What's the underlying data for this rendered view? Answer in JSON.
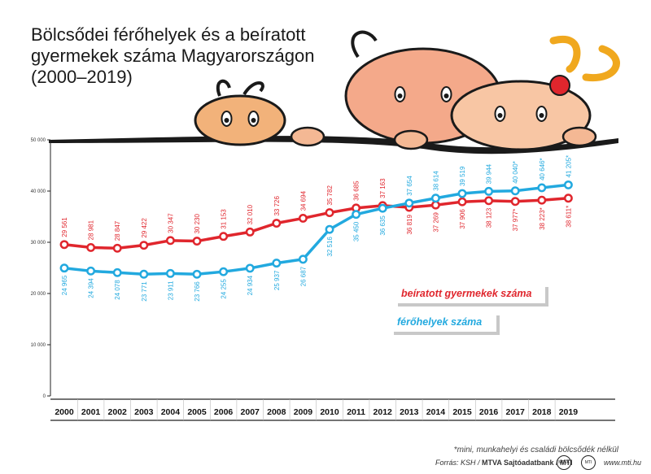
{
  "title_lines": [
    "Bölcsődei férőhelyek és a beíratott",
    "gyermekek száma Magyarországon",
    "(2000–2019)"
  ],
  "chart_data": {
    "type": "line",
    "title": "Bölcsődei férőhelyek és a beíratott gyermekek száma Magyarországon (2000–2019)",
    "categories": [
      "2000",
      "2001",
      "2002",
      "2003",
      "2004",
      "2005",
      "2006",
      "2007",
      "2008",
      "2009",
      "2010",
      "2011",
      "2012",
      "2013",
      "2014",
      "2015",
      "2016",
      "2017",
      "2018",
      "2019"
    ],
    "y_ticks": [
      "0",
      "10 000",
      "20 000",
      "30 000",
      "40 000",
      "50 000"
    ],
    "ylim": [
      0,
      50000
    ],
    "grid": false,
    "series": [
      {
        "name": "beíratott gyermekek száma",
        "color": "#e0262d",
        "values": [
          29561,
          28981,
          28847,
          29422,
          30347,
          30230,
          31153,
          32010,
          33726,
          34694,
          35782,
          36685,
          37163,
          36819,
          37269,
          37906,
          38123,
          37977,
          38223,
          38611
        ],
        "labels": [
          "29 561",
          "28 981",
          "28 847",
          "29 422",
          "30 347",
          "30 230",
          "31 153",
          "32 010",
          "33 726",
          "34 694",
          "35 782",
          "36 685",
          "37 163",
          "36 819",
          "37 269",
          "37 906",
          "38 123",
          "37 977*",
          "38 223*",
          "38 611*"
        ]
      },
      {
        "name": "férőhelyek száma",
        "color": "#22a9df",
        "values": [
          24965,
          24394,
          24078,
          23771,
          23911,
          23766,
          24255,
          24934,
          25937,
          26687,
          32516,
          35450,
          36635,
          37654,
          38614,
          39519,
          39944,
          40040,
          40646,
          41205
        ],
        "labels": [
          "24 965",
          "24 394",
          "24 078",
          "23 771",
          "23 911",
          "23 766",
          "24 255",
          "24 934",
          "25 937",
          "26 687",
          "32 516",
          "35 450",
          "36 635",
          "37 654",
          "38 614",
          "39 519",
          "39 944",
          "40 040*",
          "40 646*",
          "41 205*"
        ]
      }
    ],
    "footnote": "*mini, munkahelyi és családi bölcsődék nélkül"
  },
  "source": {
    "prefix": "Forrás: KSH / ",
    "bold": "MTVA Sajtóadatbank / MTI"
  },
  "site": "www.mti.hu",
  "logos": [
    "MTVA",
    "MTI"
  ]
}
